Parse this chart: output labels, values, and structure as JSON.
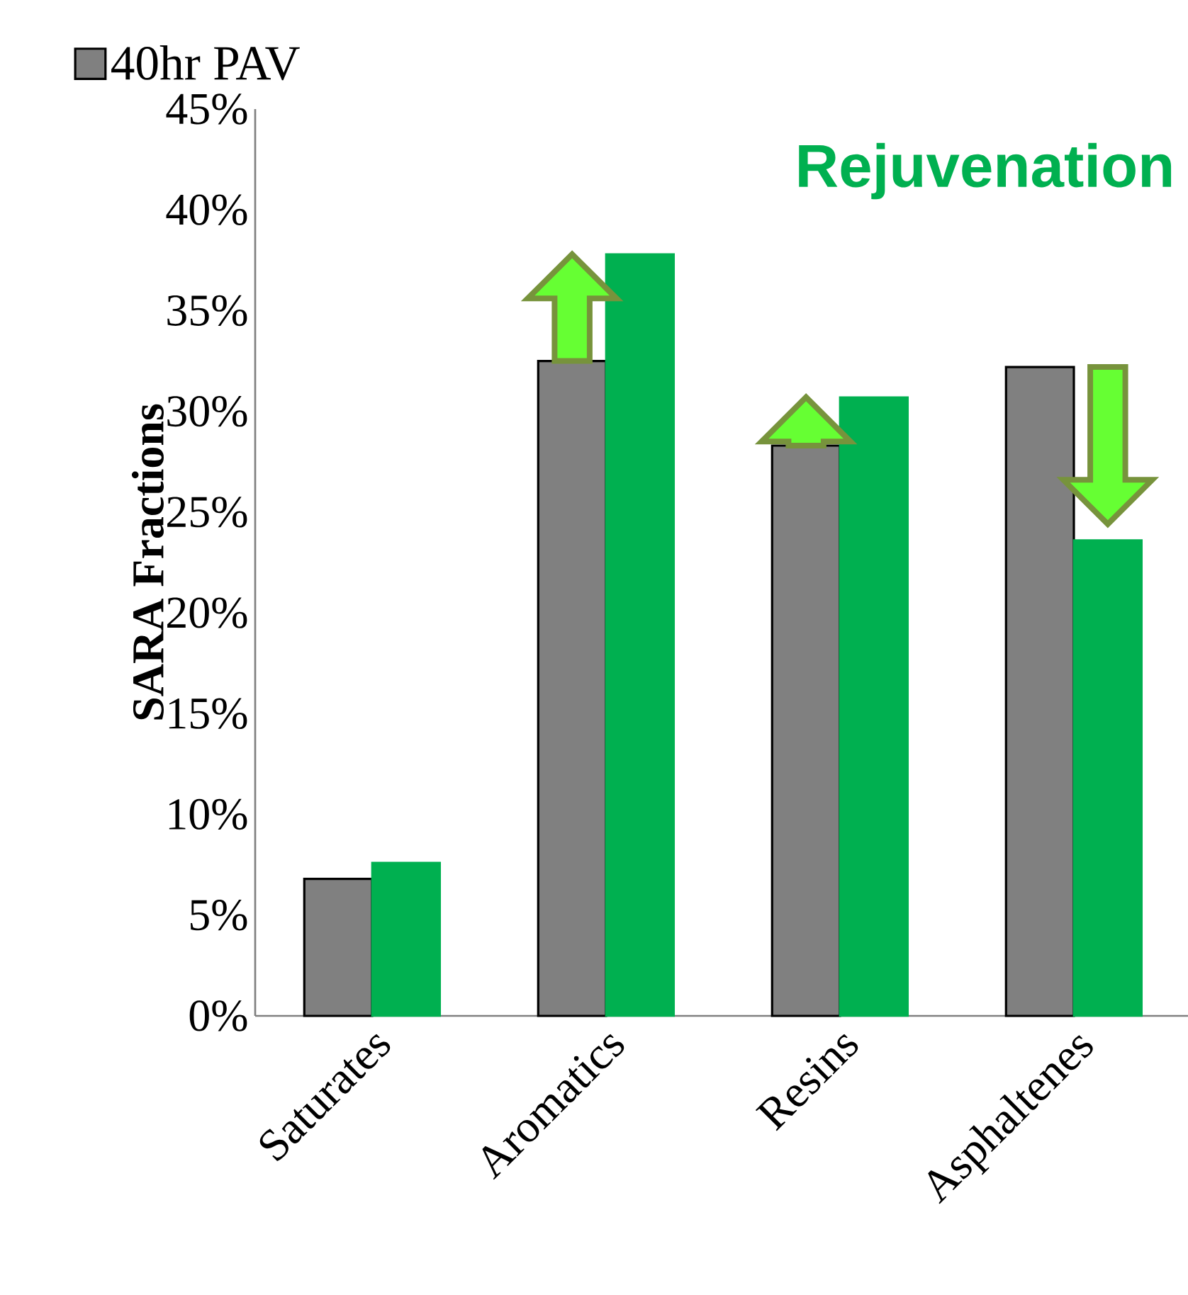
{
  "chart_data": {
    "type": "bar",
    "categories": [
      "Saturates",
      "Aromatics",
      "Resins",
      "Asphaltenes"
    ],
    "series": [
      {
        "name": "40hr PAV",
        "color": "#808080",
        "values": [
          6.8,
          32.5,
          28.3,
          32.2
        ]
      },
      {
        "color": "#00b050",
        "values": [
          7.6,
          37.8,
          30.7,
          23.6
        ]
      }
    ],
    "ylabel": "SARA Fractions",
    "ylim": [
      0,
      45
    ],
    "yticks": [
      {
        "value": 0,
        "label": "0%"
      },
      {
        "value": 5,
        "label": "5%"
      },
      {
        "value": 10,
        "label": "10%"
      },
      {
        "value": 15,
        "label": "15%"
      },
      {
        "value": 20,
        "label": "20%"
      },
      {
        "value": 25,
        "label": "25%"
      },
      {
        "value": 30,
        "label": "30%"
      },
      {
        "value": 35,
        "label": "35%"
      },
      {
        "value": 40,
        "label": "40%"
      },
      {
        "value": 45,
        "label": "45%"
      }
    ],
    "annotations": [
      "Rejuvenation"
    ],
    "legend": "top",
    "grid": false
  }
}
